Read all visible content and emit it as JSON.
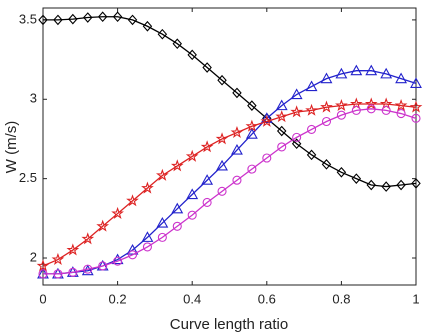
{
  "chart_data": {
    "type": "line",
    "x_label": "Curve length ratio",
    "y_label": "W (m/s)",
    "x": [
      0,
      0.04,
      0.08,
      0.12,
      0.16,
      0.2,
      0.24,
      0.28,
      0.32,
      0.36,
      0.4,
      0.44,
      0.48,
      0.52,
      0.56,
      0.6,
      0.64,
      0.68,
      0.72,
      0.76,
      0.8,
      0.84,
      0.88,
      0.92,
      0.96,
      1
    ],
    "series": [
      {
        "color": "#000000",
        "marker": "diamond",
        "values": [
          3.5,
          3.5,
          3.505,
          3.515,
          3.52,
          3.52,
          3.5,
          3.46,
          3.41,
          3.35,
          3.28,
          3.2,
          3.12,
          3.04,
          2.96,
          2.88,
          2.8,
          2.72,
          2.65,
          2.59,
          2.54,
          2.5,
          2.46,
          2.45,
          2.46,
          2.47
        ]
      },
      {
        "color": "#2222cc",
        "marker": "triangle",
        "values": [
          1.9,
          1.9,
          1.91,
          1.92,
          1.95,
          1.99,
          2.05,
          2.13,
          2.22,
          2.31,
          2.4,
          2.49,
          2.58,
          2.68,
          2.78,
          2.88,
          2.96,
          3.03,
          3.08,
          3.13,
          3.16,
          3.18,
          3.18,
          3.16,
          3.13,
          3.1
        ]
      },
      {
        "color": "#dd2222",
        "marker": "star",
        "values": [
          1.95,
          1.99,
          2.05,
          2.12,
          2.2,
          2.28,
          2.36,
          2.44,
          2.52,
          2.58,
          2.64,
          2.7,
          2.75,
          2.79,
          2.83,
          2.86,
          2.89,
          2.92,
          2.93,
          2.95,
          2.96,
          2.97,
          2.97,
          2.97,
          2.96,
          2.95
        ]
      },
      {
        "color": "#cc33cc",
        "marker": "circle",
        "values": [
          1.9,
          1.9,
          1.91,
          1.93,
          1.95,
          1.98,
          2.02,
          2.07,
          2.13,
          2.2,
          2.27,
          2.35,
          2.42,
          2.49,
          2.56,
          2.63,
          2.7,
          2.76,
          2.81,
          2.86,
          2.9,
          2.93,
          2.94,
          2.93,
          2.91,
          2.88
        ]
      }
    ],
    "xlim": [
      0,
      1
    ],
    "xticks": [
      0,
      0.2,
      0.4,
      0.6,
      0.8,
      1
    ],
    "ylim": [
      1.83,
      3.575
    ],
    "yticks": [
      2,
      2.5,
      3,
      3.5
    ],
    "grid": false
  }
}
